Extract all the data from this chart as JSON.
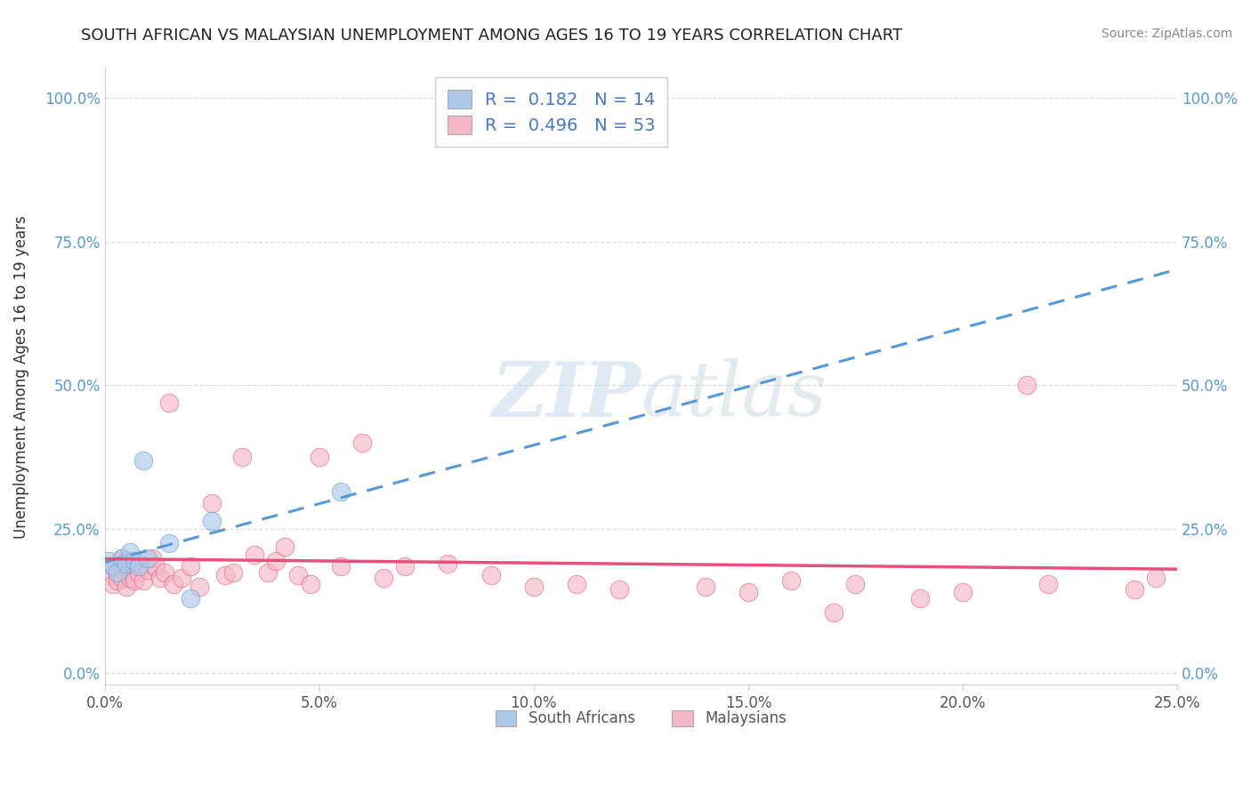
{
  "title": "SOUTH AFRICAN VS MALAYSIAN UNEMPLOYMENT AMONG AGES 16 TO 19 YEARS CORRELATION CHART",
  "source": "Source: ZipAtlas.com",
  "ylabel": "Unemployment Among Ages 16 to 19 years",
  "xlim": [
    0.0,
    0.25
  ],
  "ylim": [
    -0.02,
    1.05
  ],
  "yticks": [
    0.0,
    0.25,
    0.5,
    0.75,
    1.0
  ],
  "xticks": [
    0.0,
    0.05,
    0.1,
    0.15,
    0.2,
    0.25
  ],
  "ytick_labels": [
    "0.0%",
    "25.0%",
    "50.0%",
    "75.0%",
    "100.0%"
  ],
  "xtick_labels": [
    "0.0%",
    "5.0%",
    "10.0%",
    "15.0%",
    "20.0%",
    "25.0%"
  ],
  "sa_R": "0.182",
  "sa_N": "14",
  "my_R": "0.496",
  "my_N": "53",
  "sa_color": "#adc8e8",
  "my_color": "#f5b8c8",
  "sa_line_color": "#5599dd",
  "my_line_color": "#e8507a",
  "background_color": "#ffffff",
  "grid_color": "#dddddd",
  "sa_x": [
    0.001,
    0.002,
    0.003,
    0.004,
    0.005,
    0.006,
    0.007,
    0.008,
    0.009,
    0.01,
    0.015,
    0.02,
    0.025,
    0.055
  ],
  "sa_y": [
    0.195,
    0.185,
    0.175,
    0.2,
    0.19,
    0.21,
    0.195,
    0.185,
    0.37,
    0.2,
    0.225,
    0.13,
    0.265,
    0.315
  ],
  "my_x": [
    0.001,
    0.002,
    0.002,
    0.003,
    0.004,
    0.004,
    0.005,
    0.005,
    0.006,
    0.007,
    0.008,
    0.009,
    0.01,
    0.011,
    0.012,
    0.013,
    0.014,
    0.015,
    0.016,
    0.018,
    0.02,
    0.022,
    0.025,
    0.028,
    0.03,
    0.032,
    0.035,
    0.038,
    0.04,
    0.042,
    0.045,
    0.048,
    0.05,
    0.055,
    0.06,
    0.065,
    0.07,
    0.08,
    0.09,
    0.1,
    0.11,
    0.12,
    0.14,
    0.15,
    0.16,
    0.17,
    0.175,
    0.19,
    0.2,
    0.215,
    0.22,
    0.24,
    0.245
  ],
  "my_y": [
    0.17,
    0.155,
    0.185,
    0.16,
    0.165,
    0.2,
    0.15,
    0.195,
    0.165,
    0.16,
    0.175,
    0.16,
    0.18,
    0.2,
    0.185,
    0.165,
    0.175,
    0.47,
    0.155,
    0.165,
    0.185,
    0.15,
    0.295,
    0.17,
    0.175,
    0.375,
    0.205,
    0.175,
    0.195,
    0.22,
    0.17,
    0.155,
    0.375,
    0.185,
    0.4,
    0.165,
    0.185,
    0.19,
    0.17,
    0.15,
    0.155,
    0.145,
    0.15,
    0.14,
    0.16,
    0.105,
    0.155,
    0.13,
    0.14,
    0.5,
    0.155,
    0.145,
    0.165
  ]
}
